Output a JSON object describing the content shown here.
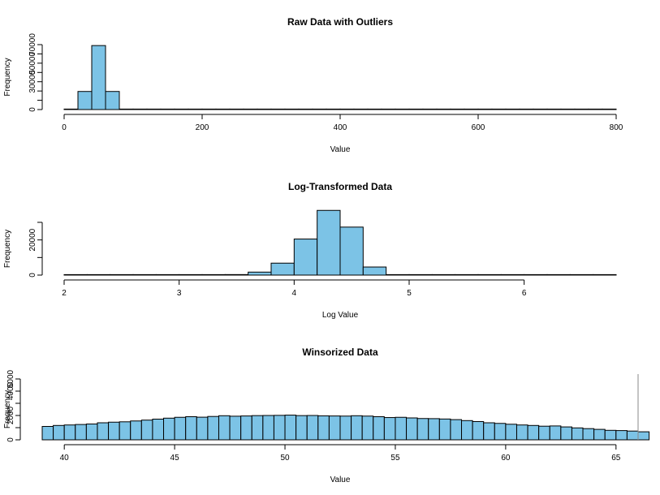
{
  "chart_data": [
    {
      "type": "bar",
      "title": "Raw Data with Outliers",
      "xlabel": "Value",
      "ylabel": "Frequency",
      "xlim": [
        0,
        800
      ],
      "ylim": [
        0,
        70000
      ],
      "xticks": [
        0,
        200,
        400,
        600,
        800
      ],
      "xtick_labels": [
        "0",
        "200",
        "400",
        "600",
        "800"
      ],
      "yticks": [
        0,
        10000,
        20000,
        30000,
        40000,
        50000,
        60000,
        70000
      ],
      "ytick_labels": [
        "0",
        "",
        "",
        "30000",
        "",
        "50000",
        "",
        "70000"
      ],
      "bin_width": 20,
      "bins_start": 0,
      "values": [
        5,
        19500,
        69000,
        19500,
        5,
        1,
        1,
        1,
        1,
        1,
        1,
        1,
        1,
        1,
        1,
        1,
        1,
        1,
        1,
        1,
        1,
        1,
        1,
        1,
        1,
        1,
        1,
        1,
        1,
        1,
        1,
        1,
        1,
        1,
        1,
        1,
        1,
        1,
        1,
        1
      ],
      "bar_color": "#7cc3e6"
    },
    {
      "type": "bar",
      "title": "Log-Transformed Data",
      "xlabel": "Log Value",
      "ylabel": "Frequency",
      "xlim": [
        2,
        6.8
      ],
      "ylim": [
        0,
        30000
      ],
      "xticks": [
        2,
        3,
        4,
        5,
        6
      ],
      "xtick_labels": [
        "2",
        "3",
        "4",
        "5",
        "6"
      ],
      "yticks": [
        0,
        10000,
        20000,
        30000
      ],
      "ytick_labels": [
        "0",
        "",
        "20000",
        ""
      ],
      "bin_width": 0.2,
      "bins_start": 2.0,
      "values": [
        1,
        1,
        1,
        1,
        1,
        2,
        40,
        300,
        1700,
        6800,
        20500,
        36800,
        27300,
        4600,
        20,
        2,
        1,
        1,
        1,
        1,
        1,
        1,
        1,
        1
      ],
      "bar_color": "#7cc3e6"
    },
    {
      "type": "bar",
      "title": "Winsorized Data",
      "xlabel": "Value",
      "ylabel": "Frequency",
      "xlim": [
        39,
        66
      ],
      "ylim": [
        0,
        5000
      ],
      "xticks": [
        40,
        45,
        50,
        55,
        60,
        65
      ],
      "xtick_labels": [
        "40",
        "45",
        "50",
        "55",
        "60",
        "65"
      ],
      "yticks": [
        0,
        1000,
        2000,
        3000,
        4000,
        5000
      ],
      "ytick_labels": [
        "0",
        "",
        "2000",
        "",
        "4000",
        "5000"
      ],
      "bin_width": 0.5,
      "bins_start": 39.0,
      "values": [
        1100,
        1180,
        1220,
        1260,
        1300,
        1400,
        1450,
        1480,
        1550,
        1620,
        1700,
        1780,
        1850,
        1900,
        1860,
        1920,
        1980,
        1940,
        1960,
        1990,
        2000,
        2010,
        2030,
        1990,
        2000,
        1970,
        1960,
        1950,
        1980,
        1950,
        1900,
        1830,
        1850,
        1800,
        1750,
        1740,
        1710,
        1660,
        1580,
        1500,
        1400,
        1350,
        1280,
        1220,
        1180,
        1120,
        1140,
        1060,
        980,
        920,
        860,
        780,
        760,
        720,
        660,
        600
      ],
      "edge_spike": 5400,
      "bar_color": "#7cc3e6"
    }
  ]
}
